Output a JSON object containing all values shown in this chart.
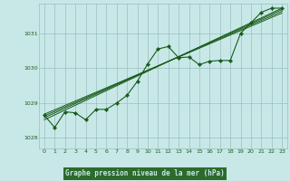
{
  "title": "Graphe pression niveau de la mer (hPa)",
  "bg_color": "#c8e8e8",
  "plot_bg_color": "#c8e8e8",
  "grid_color": "#9bbdbd",
  "line_color": "#1a5c1a",
  "marker_color": "#1a5c1a",
  "xlabel_bg": "#2d6b2d",
  "xlabel_fg": "#c8e8e8",
  "xlim": [
    -0.5,
    23.5
  ],
  "ylim": [
    1027.7,
    1031.85
  ],
  "yticks": [
    1028,
    1029,
    1030,
    1031
  ],
  "xticks": [
    0,
    1,
    2,
    3,
    4,
    5,
    6,
    7,
    8,
    9,
    10,
    11,
    12,
    13,
    14,
    15,
    16,
    17,
    18,
    19,
    20,
    21,
    22,
    23
  ],
  "series_main": [
    1028.65,
    1028.3,
    1028.75,
    1028.72,
    1028.52,
    1028.82,
    1028.82,
    1029.0,
    1029.22,
    1029.62,
    1030.12,
    1030.55,
    1030.62,
    1030.3,
    1030.32,
    1030.1,
    1030.2,
    1030.22,
    1030.22,
    1031.0,
    1031.3,
    1031.6,
    1031.72,
    1031.72
  ],
  "trend1_x": [
    0,
    23
  ],
  "trend1_y": [
    1028.58,
    1031.68
  ],
  "trend2_x": [
    0,
    23
  ],
  "trend2_y": [
    1028.52,
    1031.72
  ],
  "trend3_x": [
    0,
    23
  ],
  "trend3_y": [
    1028.63,
    1031.63
  ],
  "trend4_x": [
    0,
    23
  ],
  "trend4_y": [
    1028.68,
    1031.58
  ]
}
